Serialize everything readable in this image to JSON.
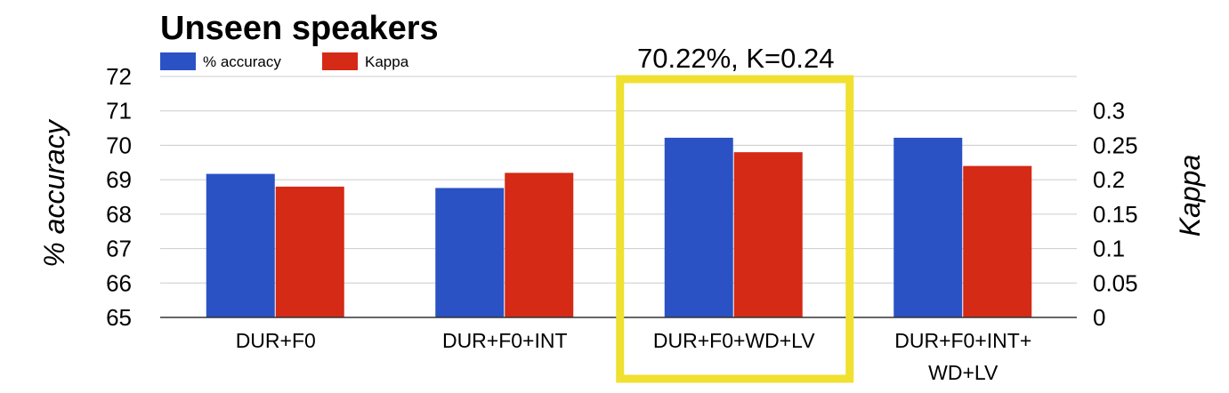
{
  "chart_data": {
    "type": "bar",
    "title": "Unseen speakers",
    "categories": [
      [
        "DUR+F0"
      ],
      [
        "DUR+F0+INT"
      ],
      [
        "DUR+F0+WD+LV"
      ],
      [
        "DUR+F0+INT+",
        "WD+LV"
      ]
    ],
    "series": [
      {
        "name": "% accuracy",
        "axis": "left",
        "color": "#2a52c4",
        "values": [
          69.17,
          68.76,
          70.22,
          70.22
        ]
      },
      {
        "name": "Kappa",
        "axis": "right",
        "color": "#d42a16",
        "values": [
          0.19,
          0.21,
          0.24,
          0.22
        ]
      }
    ],
    "ylabel": "% accuracy",
    "ylim": [
      65,
      72
    ],
    "yticks": [
      "65",
      "66",
      "67",
      "68",
      "69",
      "70",
      "71",
      "72"
    ],
    "y2label": "Kappa",
    "y2lim": [
      0,
      0.3
    ],
    "y2ticks": [
      "0",
      "0.05",
      "0.1",
      "0.15",
      "0.2",
      "0.25",
      "0.3"
    ],
    "grid": true,
    "legend_position": "top-left",
    "annotation": {
      "text": "70.22%, K=0.24",
      "category_index": 2,
      "highlight_color": "#f0e030"
    }
  }
}
